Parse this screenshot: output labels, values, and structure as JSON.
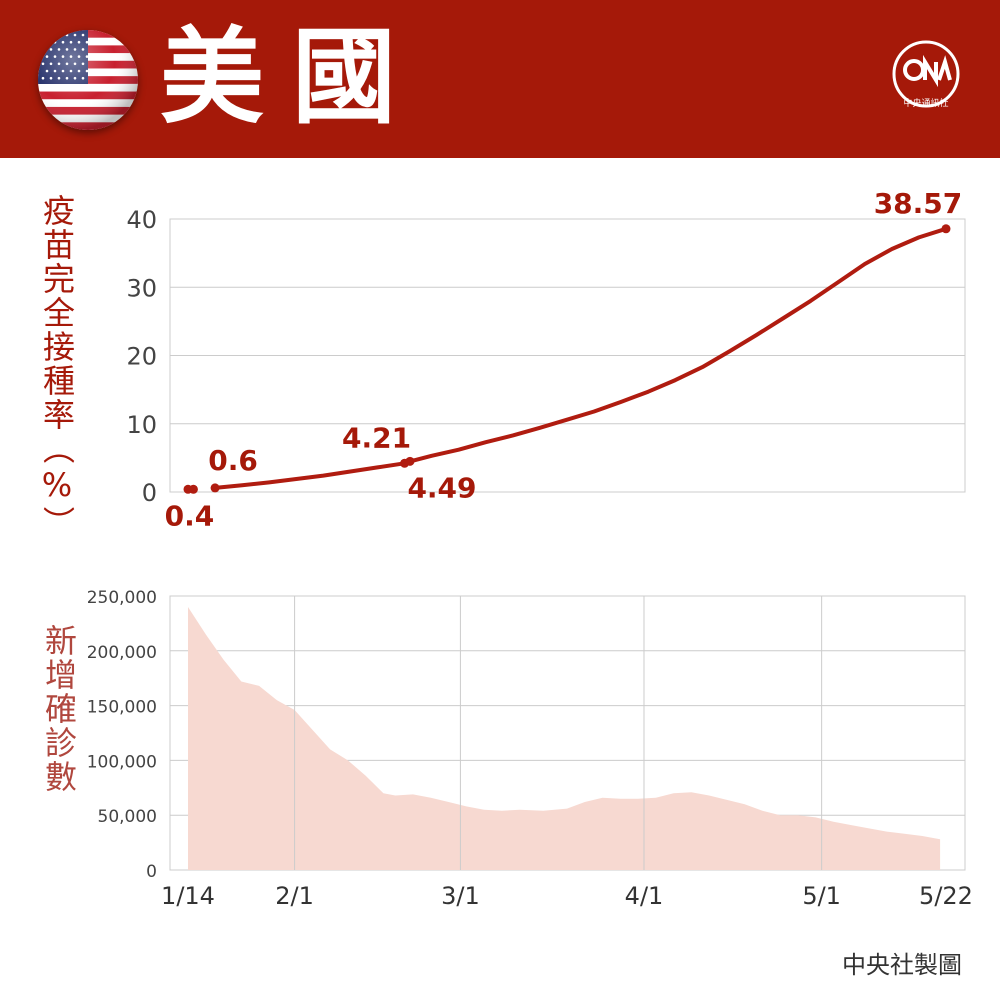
{
  "header": {
    "title": "美國",
    "logo_text": "中央通訊社",
    "flag_icon": "us-flag-icon"
  },
  "colors": {
    "header_bg": "#a51909",
    "line": "#b01c10",
    "area_fill": "#f7d9d1",
    "label_top": "#a51909",
    "label_bottom": "#b0473e"
  },
  "credit": "中央社製圖",
  "chart_data": [
    {
      "type": "line",
      "ylabel": "疫苗完全接種率（%）",
      "ylim": [
        0,
        40
      ],
      "yticks": [
        0,
        10,
        20,
        30,
        40
      ],
      "grid": true,
      "x_day_range": [
        0,
        128
      ],
      "segments": [
        [
          [
            0,
            0.4
          ],
          [
            1,
            0.4
          ]
        ],
        [
          [
            5,
            0.6
          ],
          [
            10,
            1.0
          ],
          [
            15,
            1.4
          ],
          [
            20,
            1.9
          ],
          [
            25,
            2.4
          ],
          [
            30,
            3.0
          ],
          [
            35,
            3.6
          ],
          [
            40,
            4.21
          ]
        ],
        [
          [
            41,
            4.49
          ],
          [
            45,
            5.3
          ],
          [
            50,
            6.2
          ],
          [
            55,
            7.3
          ],
          [
            60,
            8.3
          ],
          [
            65,
            9.4
          ],
          [
            70,
            10.6
          ],
          [
            75,
            11.8
          ],
          [
            80,
            13.2
          ],
          [
            85,
            14.7
          ],
          [
            90,
            16.4
          ],
          [
            95,
            18.3
          ],
          [
            100,
            20.6
          ],
          [
            105,
            23.0
          ],
          [
            110,
            25.5
          ],
          [
            115,
            28.0
          ],
          [
            120,
            30.7
          ],
          [
            125,
            33.4
          ],
          [
            130,
            35.6
          ],
          [
            135,
            37.3
          ],
          [
            140,
            38.57
          ]
        ]
      ],
      "labels": [
        {
          "text": "0.4",
          "day": 1,
          "value": 0.4,
          "pos": "below"
        },
        {
          "text": "0.6",
          "day": 5,
          "value": 0.6,
          "pos": "above"
        },
        {
          "text": "4.21",
          "day": 40,
          "value": 4.21,
          "pos": "above-left"
        },
        {
          "text": "4.49",
          "day": 41,
          "value": 4.49,
          "pos": "below-right"
        },
        {
          "text": "38.57",
          "day": 140,
          "value": 38.57,
          "pos": "above-left"
        }
      ]
    },
    {
      "type": "area",
      "ylabel": "新增確診數",
      "ylim": [
        0,
        250000
      ],
      "yticks": [
        0,
        50000,
        100000,
        150000,
        200000,
        250000
      ],
      "ytick_labels": [
        "0",
        "50,000",
        "100,000",
        "150,000",
        "200,000",
        "250,000"
      ],
      "categories": [
        "1/14",
        "2/1",
        "3/1",
        "4/1",
        "5/1",
        "5/22"
      ],
      "category_days": [
        0,
        18,
        46,
        77,
        107,
        128
      ],
      "x": [
        0,
        3,
        6,
        9,
        12,
        15,
        18,
        21,
        24,
        27,
        30,
        33,
        35,
        38,
        41,
        44,
        47,
        50,
        53,
        56,
        60,
        64,
        67,
        70,
        73,
        76,
        79,
        82,
        85,
        88,
        91,
        94,
        97,
        100,
        103,
        106,
        109,
        112,
        115,
        118,
        121,
        124,
        127
      ],
      "values": [
        240000,
        215000,
        192000,
        172000,
        168000,
        155000,
        146000,
        128000,
        110000,
        100000,
        86000,
        70000,
        68000,
        69000,
        66000,
        62000,
        58000,
        55000,
        54000,
        55000,
        54000,
        56000,
        62000,
        66000,
        65000,
        65000,
        66000,
        70000,
        71000,
        68000,
        64000,
        60000,
        54000,
        50000,
        50000,
        48000,
        44000,
        41000,
        38000,
        35000,
        33000,
        31000,
        28000
      ]
    }
  ]
}
